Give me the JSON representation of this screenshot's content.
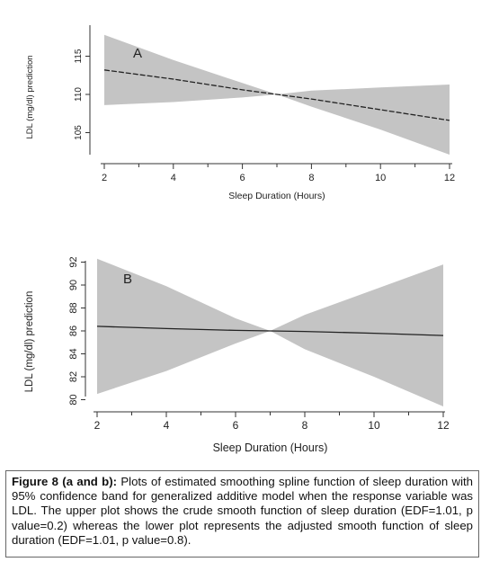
{
  "chart_data": [
    {
      "type": "area",
      "panel_label": "A",
      "xlabel": "Sleep Duration (Hours)",
      "ylabel": "LDL (mg/dl) prediction",
      "x_ticks": [
        2,
        4,
        6,
        8,
        10,
        12
      ],
      "y_ticks": [
        105,
        110,
        115
      ],
      "xlim": [
        2,
        12
      ],
      "ylim": [
        104.5,
        117.5
      ],
      "series": [
        {
          "role": "estimate",
          "x": [
            2,
            4,
            6,
            7,
            8,
            10,
            12
          ],
          "y": [
            113.2,
            112.0,
            110.6,
            110.0,
            109.4,
            108.0,
            106.6
          ]
        },
        {
          "role": "ci_upper",
          "x": [
            2,
            4,
            6,
            7,
            8,
            10,
            12
          ],
          "y": [
            117.8,
            114.5,
            111.5,
            110.0,
            110.5,
            110.9,
            111.3
          ]
        },
        {
          "role": "ci_lower",
          "x": [
            2,
            4,
            6,
            7,
            8,
            10,
            12
          ],
          "y": [
            108.6,
            109.0,
            109.6,
            110.0,
            108.4,
            105.4,
            101.9
          ]
        }
      ],
      "band_color": "#c4c4c4",
      "line_color": "#222222"
    },
    {
      "type": "area",
      "panel_label": "B",
      "xlabel": "Sleep Duration (Hours)",
      "ylabel": "LDL (mg/dl) prediction",
      "x_ticks": [
        2,
        4,
        6,
        8,
        10,
        12
      ],
      "y_ticks": [
        80,
        82,
        84,
        86,
        88,
        90,
        92
      ],
      "xlim": [
        2,
        12
      ],
      "ylim": [
        79.5,
        92.5
      ],
      "series": [
        {
          "role": "estimate",
          "x": [
            2,
            4,
            6,
            7,
            8,
            10,
            12
          ],
          "y": [
            86.4,
            86.2,
            86.05,
            86.0,
            85.95,
            85.8,
            85.6
          ]
        },
        {
          "role": "ci_upper",
          "x": [
            2,
            4,
            6,
            7,
            8,
            10,
            12
          ],
          "y": [
            92.3,
            89.9,
            87.1,
            86.0,
            87.4,
            89.6,
            91.8
          ]
        },
        {
          "role": "ci_lower",
          "x": [
            2,
            4,
            6,
            7,
            8,
            10,
            12
          ],
          "y": [
            80.5,
            82.5,
            84.9,
            86.0,
            84.4,
            82.0,
            79.4
          ]
        }
      ],
      "band_color": "#c4c4c4",
      "line_color": "#222222"
    }
  ],
  "caption": {
    "label": "Figure 8 (a and b):",
    "text": " Plots of estimated smoothing spline function of sleep duration with 95% confidence band for generalized additive model when the response variable was LDL. The upper plot shows the crude smooth function of sleep duration (EDF=1.01, p value=0.2) whereas the lower plot represents the adjusted smooth function of sleep duration (EDF=1.01, p value=0.8)."
  }
}
